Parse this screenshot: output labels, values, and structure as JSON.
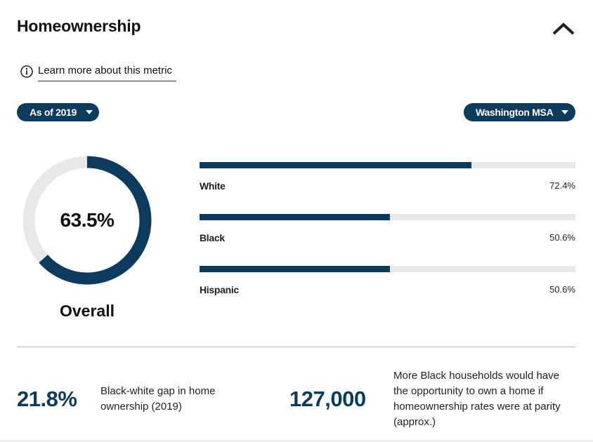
{
  "header": {
    "title": "Homeownership",
    "collapse_icon": "chevron-up-icon"
  },
  "learn_more": {
    "icon": "info-icon",
    "label": "Learn more about this metric"
  },
  "filters": {
    "year": {
      "selected": "As of 2019",
      "icon": "caret-down-icon"
    },
    "region": {
      "selected": "Washington MSA",
      "icon": "caret-down-icon"
    }
  },
  "overall": {
    "value_text": "63.5%",
    "value": 63.5,
    "caption": "Overall"
  },
  "chart_data": {
    "type": "bar",
    "categories": [
      "White",
      "Black",
      "Hispanic"
    ],
    "values": [
      72.4,
      50.6,
      50.6
    ],
    "value_labels": [
      "72.4%",
      "50.6%",
      "50.6%"
    ],
    "ylim": [
      0,
      100
    ],
    "orientation": "horizontal"
  },
  "stats": [
    {
      "number": "21.8%",
      "description": "Black-white gap in home ownership (2019)"
    },
    {
      "number": "127,000",
      "description": "More Black households would have the opportunity to own a home if homeownership rates were at parity (approx.)"
    }
  ],
  "colors": {
    "accent": "#0d3b5e",
    "track": "#e8e8e8"
  }
}
